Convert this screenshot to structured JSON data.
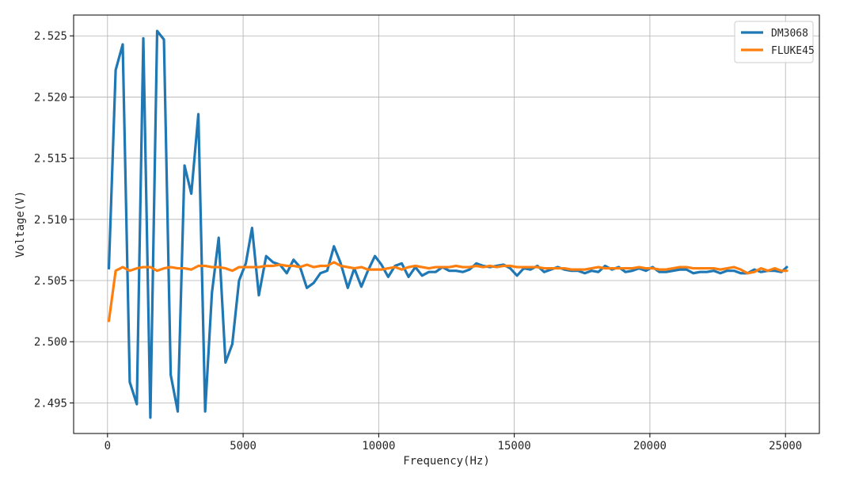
{
  "chart_data": {
    "type": "line",
    "title": "",
    "xlabel": "Frequency(Hz)",
    "ylabel": "Voltage(V)",
    "xlim": [
      -1250,
      26250
    ],
    "ylim": [
      2.4925,
      2.5267
    ],
    "grid": true,
    "legend_position": "top-right",
    "x_ticks": [
      0,
      5000,
      10000,
      15000,
      20000,
      25000
    ],
    "x_tick_labels": [
      "0",
      "5000",
      "10000",
      "15000",
      "20000",
      "25000"
    ],
    "y_ticks": [
      2.495,
      2.5,
      2.505,
      2.51,
      2.515,
      2.52,
      2.525
    ],
    "y_tick_labels": [
      "2.495",
      "2.500",
      "2.505",
      "2.510",
      "2.515",
      "2.520",
      "2.525"
    ],
    "series": [
      {
        "name": "DM3068",
        "color": "#1f77b4",
        "points": [
          [
            50,
            2.506
          ],
          [
            300,
            2.5222
          ],
          [
            560,
            2.5243
          ],
          [
            820,
            2.4967
          ],
          [
            1080,
            2.4949
          ],
          [
            1320,
            2.5248
          ],
          [
            1580,
            2.4938
          ],
          [
            1830,
            2.5254
          ],
          [
            2080,
            2.5247
          ],
          [
            2330,
            2.4973
          ],
          [
            2590,
            2.4943
          ],
          [
            2840,
            2.5144
          ],
          [
            3090,
            2.5121
          ],
          [
            3350,
            2.5186
          ],
          [
            3600,
            2.4943
          ],
          [
            3850,
            2.504
          ],
          [
            4100,
            2.5085
          ],
          [
            4350,
            2.4983
          ],
          [
            4600,
            2.4998
          ],
          [
            4850,
            2.505
          ],
          [
            5100,
            2.5064
          ],
          [
            5330,
            2.5093
          ],
          [
            5580,
            2.5038
          ],
          [
            5850,
            2.507
          ],
          [
            6100,
            2.5065
          ],
          [
            6360,
            2.5063
          ],
          [
            6610,
            2.5056
          ],
          [
            6860,
            2.5067
          ],
          [
            7100,
            2.5061
          ],
          [
            7350,
            2.5044
          ],
          [
            7600,
            2.5048
          ],
          [
            7850,
            2.5056
          ],
          [
            8100,
            2.5058
          ],
          [
            8350,
            2.5078
          ],
          [
            8600,
            2.5064
          ],
          [
            8860,
            2.5044
          ],
          [
            9100,
            2.506
          ],
          [
            9360,
            2.5045
          ],
          [
            9600,
            2.5058
          ],
          [
            9860,
            2.507
          ],
          [
            10100,
            2.5063
          ],
          [
            10350,
            2.5053
          ],
          [
            10600,
            2.5062
          ],
          [
            10850,
            2.5064
          ],
          [
            11100,
            2.5053
          ],
          [
            11350,
            2.5061
          ],
          [
            11600,
            2.5054
          ],
          [
            11850,
            2.5057
          ],
          [
            12100,
            2.5057
          ],
          [
            12350,
            2.5061
          ],
          [
            12600,
            2.5058
          ],
          [
            12850,
            2.5058
          ],
          [
            13100,
            2.5057
          ],
          [
            13350,
            2.5059
          ],
          [
            13600,
            2.5064
          ],
          [
            13850,
            2.5062
          ],
          [
            14100,
            2.5061
          ],
          [
            14350,
            2.5062
          ],
          [
            14600,
            2.5063
          ],
          [
            14850,
            2.506
          ],
          [
            15100,
            2.5054
          ],
          [
            15350,
            2.506
          ],
          [
            15600,
            2.5059
          ],
          [
            15850,
            2.5062
          ],
          [
            16100,
            2.5057
          ],
          [
            16350,
            2.5059
          ],
          [
            16600,
            2.5061
          ],
          [
            16850,
            2.5059
          ],
          [
            17100,
            2.5058
          ],
          [
            17350,
            2.5058
          ],
          [
            17600,
            2.5056
          ],
          [
            17850,
            2.5058
          ],
          [
            18100,
            2.5057
          ],
          [
            18350,
            2.5062
          ],
          [
            18600,
            2.5059
          ],
          [
            18850,
            2.5061
          ],
          [
            19100,
            2.5057
          ],
          [
            19350,
            2.5058
          ],
          [
            19600,
            2.506
          ],
          [
            19850,
            2.5058
          ],
          [
            20100,
            2.5061
          ],
          [
            20350,
            2.5057
          ],
          [
            20600,
            2.5057
          ],
          [
            20850,
            2.5058
          ],
          [
            21100,
            2.5059
          ],
          [
            21350,
            2.5059
          ],
          [
            21600,
            2.5056
          ],
          [
            21850,
            2.5057
          ],
          [
            22100,
            2.5057
          ],
          [
            22350,
            2.5058
          ],
          [
            22600,
            2.5056
          ],
          [
            22850,
            2.5058
          ],
          [
            23100,
            2.5058
          ],
          [
            23350,
            2.5056
          ],
          [
            23600,
            2.5056
          ],
          [
            23850,
            2.5059
          ],
          [
            24100,
            2.5057
          ],
          [
            24350,
            2.5058
          ],
          [
            24600,
            2.5058
          ],
          [
            24850,
            2.5057
          ],
          [
            25050,
            2.5061
          ]
        ]
      },
      {
        "name": "FLUKE45",
        "color": "#ff7f0e",
        "points": [
          [
            50,
            2.5017
          ],
          [
            300,
            2.5058
          ],
          [
            560,
            2.5061
          ],
          [
            820,
            2.5058
          ],
          [
            1080,
            2.506
          ],
          [
            1320,
            2.5061
          ],
          [
            1580,
            2.5061
          ],
          [
            1830,
            2.5058
          ],
          [
            2080,
            2.506
          ],
          [
            2330,
            2.5061
          ],
          [
            2590,
            2.506
          ],
          [
            2840,
            2.506
          ],
          [
            3090,
            2.5059
          ],
          [
            3350,
            2.5062
          ],
          [
            3600,
            2.5062
          ],
          [
            3850,
            2.5061
          ],
          [
            4100,
            2.5061
          ],
          [
            4350,
            2.506
          ],
          [
            4600,
            2.5058
          ],
          [
            4850,
            2.5061
          ],
          [
            5100,
            2.5061
          ],
          [
            5330,
            2.5061
          ],
          [
            5580,
            2.5061
          ],
          [
            5850,
            2.5062
          ],
          [
            6100,
            2.5062
          ],
          [
            6360,
            2.5063
          ],
          [
            6610,
            2.5062
          ],
          [
            6860,
            2.5062
          ],
          [
            7100,
            2.5061
          ],
          [
            7350,
            2.5063
          ],
          [
            7600,
            2.5061
          ],
          [
            7850,
            2.5062
          ],
          [
            8100,
            2.5062
          ],
          [
            8350,
            2.5065
          ],
          [
            8600,
            2.5062
          ],
          [
            8860,
            2.5061
          ],
          [
            9100,
            2.506
          ],
          [
            9360,
            2.5061
          ],
          [
            9600,
            2.5059
          ],
          [
            9860,
            2.5059
          ],
          [
            10100,
            2.5059
          ],
          [
            10350,
            2.506
          ],
          [
            10600,
            2.5061
          ],
          [
            10850,
            2.5059
          ],
          [
            11100,
            2.5061
          ],
          [
            11350,
            2.5062
          ],
          [
            11600,
            2.5061
          ],
          [
            11850,
            2.506
          ],
          [
            12100,
            2.5061
          ],
          [
            12350,
            2.5061
          ],
          [
            12600,
            2.5061
          ],
          [
            12850,
            2.5062
          ],
          [
            13100,
            2.5061
          ],
          [
            13350,
            2.5061
          ],
          [
            13600,
            2.5062
          ],
          [
            13850,
            2.5061
          ],
          [
            14100,
            2.5062
          ],
          [
            14350,
            2.5061
          ],
          [
            14600,
            2.5062
          ],
          [
            14850,
            2.5062
          ],
          [
            15100,
            2.5061
          ],
          [
            15350,
            2.5061
          ],
          [
            15600,
            2.5061
          ],
          [
            15850,
            2.5061
          ],
          [
            16100,
            2.506
          ],
          [
            16350,
            2.506
          ],
          [
            16600,
            2.506
          ],
          [
            16850,
            2.506
          ],
          [
            17100,
            2.5059
          ],
          [
            17350,
            2.5059
          ],
          [
            17600,
            2.5059
          ],
          [
            17850,
            2.506
          ],
          [
            18100,
            2.5061
          ],
          [
            18350,
            2.506
          ],
          [
            18600,
            2.506
          ],
          [
            18850,
            2.506
          ],
          [
            19100,
            2.506
          ],
          [
            19350,
            2.506
          ],
          [
            19600,
            2.5061
          ],
          [
            19850,
            2.506
          ],
          [
            20100,
            2.506
          ],
          [
            20350,
            2.5059
          ],
          [
            20600,
            2.5059
          ],
          [
            20850,
            2.506
          ],
          [
            21100,
            2.5061
          ],
          [
            21350,
            2.5061
          ],
          [
            21600,
            2.506
          ],
          [
            21850,
            2.506
          ],
          [
            22100,
            2.506
          ],
          [
            22350,
            2.506
          ],
          [
            22600,
            2.5059
          ],
          [
            22850,
            2.506
          ],
          [
            23100,
            2.5061
          ],
          [
            23350,
            2.5059
          ],
          [
            23600,
            2.5056
          ],
          [
            23850,
            2.5057
          ],
          [
            24100,
            2.506
          ],
          [
            24350,
            2.5058
          ],
          [
            24600,
            2.506
          ],
          [
            24850,
            2.5058
          ],
          [
            25050,
            2.5058
          ]
        ]
      }
    ]
  }
}
